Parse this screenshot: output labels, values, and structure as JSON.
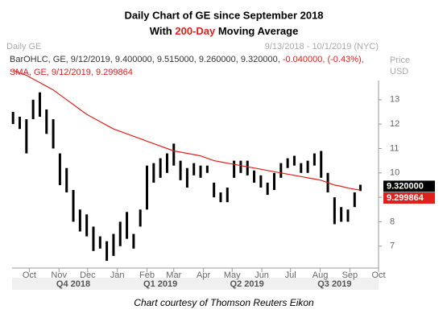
{
  "chart_data": {
    "type": "ohlc-range",
    "title_1": "Daily Chart of GE since September 2018",
    "title_2_pre": "With ",
    "title_2_highlight": "200-Day",
    "title_2_post": " Moving Average",
    "panel_label": "Daily GE",
    "date_range": "9/13/2018 - 10/1/2019 (NYC)",
    "axis_label_1": "Price",
    "axis_label_2": "USD",
    "legend_bars": "BarOHLC, GE, 9/12/2019, 9.400000, 9.515000, 9.260000, 9.320000,",
    "legend_change": "-0.040000, (-0.43%),",
    "legend_sma": "SMA, GE, 9/12/2019, 9.299864",
    "footer": "Chart courtesy of Thomson Reuters Eikon",
    "xlim": [
      "2018-09-13",
      "2019-10-01"
    ],
    "x": [
      "2018-09-14",
      "2018-09-21",
      "2018-09-28",
      "2018-10-05",
      "2018-10-12",
      "2018-10-19",
      "2018-10-26",
      "2018-11-02",
      "2018-11-09",
      "2018-11-16",
      "2018-11-23",
      "2018-11-30",
      "2018-12-07",
      "2018-12-14",
      "2018-12-21",
      "2018-12-28",
      "2019-01-04",
      "2019-01-11",
      "2019-01-18",
      "2019-01-25",
      "2019-02-01",
      "2019-02-08",
      "2019-02-15",
      "2019-02-22",
      "2019-03-01",
      "2019-03-08",
      "2019-03-15",
      "2019-03-22",
      "2019-03-29",
      "2019-04-05",
      "2019-04-12",
      "2019-04-19",
      "2019-04-26",
      "2019-05-03",
      "2019-05-10",
      "2019-05-17",
      "2019-05-24",
      "2019-05-31",
      "2019-06-07",
      "2019-06-14",
      "2019-06-21",
      "2019-06-28",
      "2019-07-05",
      "2019-07-12",
      "2019-07-19",
      "2019-07-26",
      "2019-08-02",
      "2019-08-09",
      "2019-08-16",
      "2019-08-23",
      "2019-08-30",
      "2019-09-06",
      "2019-09-12"
    ],
    "bars": {
      "color": "#000000",
      "low": [
        12.0,
        11.8,
        10.8,
        12.2,
        12.3,
        11.6,
        11.0,
        9.5,
        9.2,
        8.0,
        7.6,
        7.4,
        6.8,
        6.9,
        6.4,
        6.6,
        7.0,
        7.3,
        6.9,
        7.8,
        8.5,
        9.6,
        9.8,
        10.0,
        10.3,
        9.7,
        9.4,
        9.9,
        9.8,
        10.0,
        9.0,
        8.8,
        8.8,
        9.8,
        10.0,
        9.9,
        9.6,
        9.4,
        9.1,
        9.3,
        9.8,
        10.2,
        10.3,
        10.0,
        10.0,
        10.3,
        9.8,
        9.2,
        7.9,
        8.0,
        8.0,
        8.6,
        9.26
      ],
      "high": [
        12.5,
        12.3,
        12.2,
        13.0,
        13.3,
        12.6,
        12.2,
        10.8,
        10.2,
        9.3,
        8.5,
        8.3,
        7.8,
        7.4,
        7.2,
        7.5,
        8.0,
        8.4,
        7.5,
        8.5,
        10.3,
        10.4,
        10.6,
        10.8,
        11.2,
        10.5,
        10.2,
        10.4,
        10.3,
        10.3,
        9.6,
        9.2,
        9.4,
        10.5,
        10.5,
        10.5,
        10.1,
        9.9,
        9.6,
        10.0,
        10.4,
        10.6,
        10.7,
        10.4,
        10.5,
        10.8,
        10.9,
        10.0,
        9.0,
        8.6,
        8.5,
        9.2,
        9.515
      ]
    },
    "sma": {
      "color": "#e0201b",
      "values": [
        14.2,
        14.1,
        14.0,
        13.85,
        13.7,
        13.55,
        13.4,
        13.2,
        13.0,
        12.8,
        12.6,
        12.4,
        12.25,
        12.1,
        11.95,
        11.8,
        11.7,
        11.6,
        11.5,
        11.4,
        11.3,
        11.2,
        11.1,
        11.0,
        10.9,
        10.85,
        10.8,
        10.75,
        10.7,
        10.6,
        10.5,
        10.45,
        10.4,
        10.35,
        10.3,
        10.25,
        10.2,
        10.15,
        10.1,
        10.05,
        10.0,
        9.95,
        9.9,
        9.85,
        9.8,
        9.75,
        9.7,
        9.6,
        9.5,
        9.45,
        9.38,
        9.33,
        9.299864
      ]
    },
    "last_price": {
      "value": 9.32,
      "label": "9.320000"
    },
    "last_sma": {
      "value": 9.299864,
      "label": "9.299864"
    },
    "ylim": [
      6.2,
      15.6
    ],
    "yticks": [
      7,
      8,
      9,
      10,
      11,
      12,
      13
    ],
    "xticks": [
      {
        "value": "2018-10-01",
        "label": "Oct"
      },
      {
        "value": "2018-11-01",
        "label": "Nov"
      },
      {
        "value": "2018-12-01",
        "label": "Dec"
      },
      {
        "value": "2019-01-01",
        "label": "Jan"
      },
      {
        "value": "2019-02-01",
        "label": "Feb"
      },
      {
        "value": "2019-03-01",
        "label": "Mar"
      },
      {
        "value": "2019-04-01",
        "label": "Apr"
      },
      {
        "value": "2019-05-01",
        "label": "May"
      },
      {
        "value": "2019-06-01",
        "label": "Jun"
      },
      {
        "value": "2019-07-01",
        "label": "Jul"
      },
      {
        "value": "2019-08-01",
        "label": "Aug"
      },
      {
        "value": "2019-09-01",
        "label": "Sep"
      },
      {
        "value": "2019-10-01",
        "label": "Oct"
      }
    ],
    "quarters": [
      "Q4 2018",
      "Q1 2019",
      "Q2 2019",
      "Q3 2019"
    ]
  }
}
